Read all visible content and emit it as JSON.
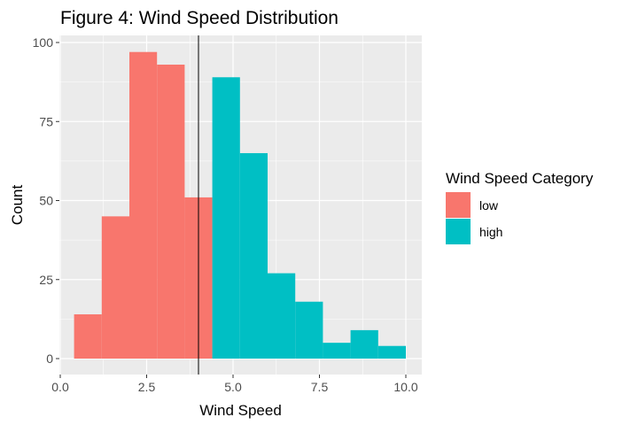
{
  "chart_data": {
    "type": "bar",
    "subtype": "histogram",
    "title": "Figure 4: Wind Speed Distribution",
    "xlabel": "Wind Speed",
    "ylabel": "Count",
    "xlim": [
      0,
      10.5
    ],
    "ylim": [
      0,
      100
    ],
    "x_ticks": [
      0,
      2.5,
      5,
      7.5,
      10
    ],
    "x_tick_labels": [
      "0.0",
      "2.5",
      "5.0",
      "7.5",
      "10.0"
    ],
    "y_ticks": [
      0,
      25,
      50,
      75,
      100
    ],
    "y_tick_labels": [
      "0",
      "25",
      "50",
      "75",
      "100"
    ],
    "grid": true,
    "legend_position": "right",
    "legend": {
      "title": "Wind Speed Category",
      "entries": [
        {
          "label": "low",
          "color": "#F8766D"
        },
        {
          "label": "high",
          "color": "#00BFC4"
        }
      ]
    },
    "bins": [
      {
        "x0": 0.4,
        "x1": 1.2,
        "count": 14,
        "group": "low"
      },
      {
        "x0": 1.2,
        "x1": 2.0,
        "count": 45,
        "group": "low"
      },
      {
        "x0": 2.0,
        "x1": 2.8,
        "count": 97,
        "group": "low"
      },
      {
        "x0": 2.8,
        "x1": 3.6,
        "count": 93,
        "group": "low"
      },
      {
        "x0": 3.6,
        "x1": 4.4,
        "count": 51,
        "group": "low"
      },
      {
        "x0": 4.4,
        "x1": 5.2,
        "count": 89,
        "group": "high"
      },
      {
        "x0": 5.2,
        "x1": 6.0,
        "count": 65,
        "group": "high"
      },
      {
        "x0": 6.0,
        "x1": 6.8,
        "count": 27,
        "group": "high"
      },
      {
        "x0": 6.8,
        "x1": 7.6,
        "count": 18,
        "group": "high"
      },
      {
        "x0": 7.6,
        "x1": 8.4,
        "count": 5,
        "group": "high"
      },
      {
        "x0": 8.4,
        "x1": 9.2,
        "count": 9,
        "group": "high"
      },
      {
        "x0": 9.2,
        "x1": 10.0,
        "count": 4,
        "group": "high"
      }
    ],
    "vline": {
      "x": 4.0,
      "color": "#000000"
    },
    "panel_background": "#EBEBEB",
    "grid_color": "#FFFFFF"
  }
}
